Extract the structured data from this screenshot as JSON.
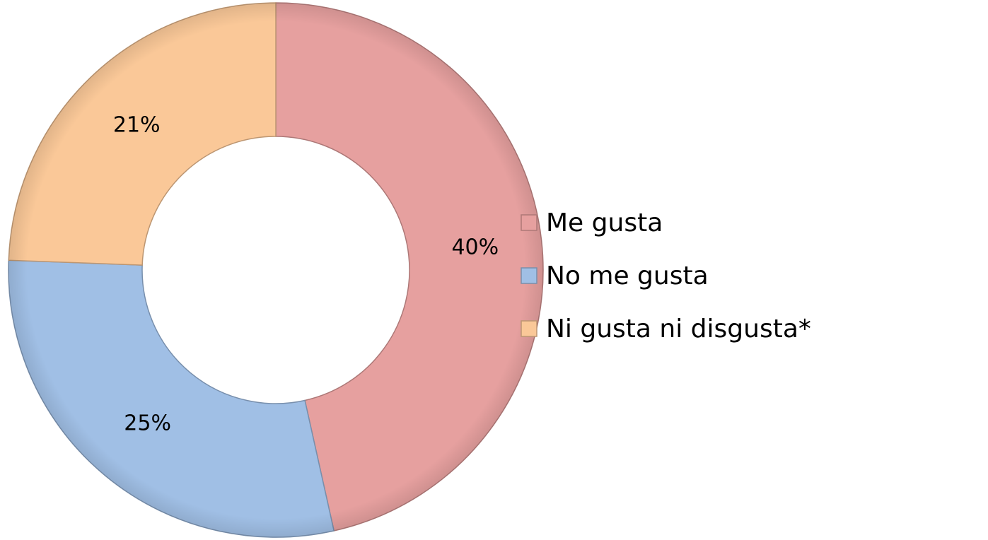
{
  "chart_data": {
    "type": "donut",
    "categories": [
      "Me gusta",
      "No me gusta",
      "Ni gusta ni disgusta*"
    ],
    "values": [
      40,
      25,
      21
    ],
    "value_labels": [
      "40%",
      "25%",
      "21%"
    ],
    "colors": [
      "#e6a09f",
      "#a0bfe5",
      "#fac898"
    ],
    "legend": "right"
  }
}
